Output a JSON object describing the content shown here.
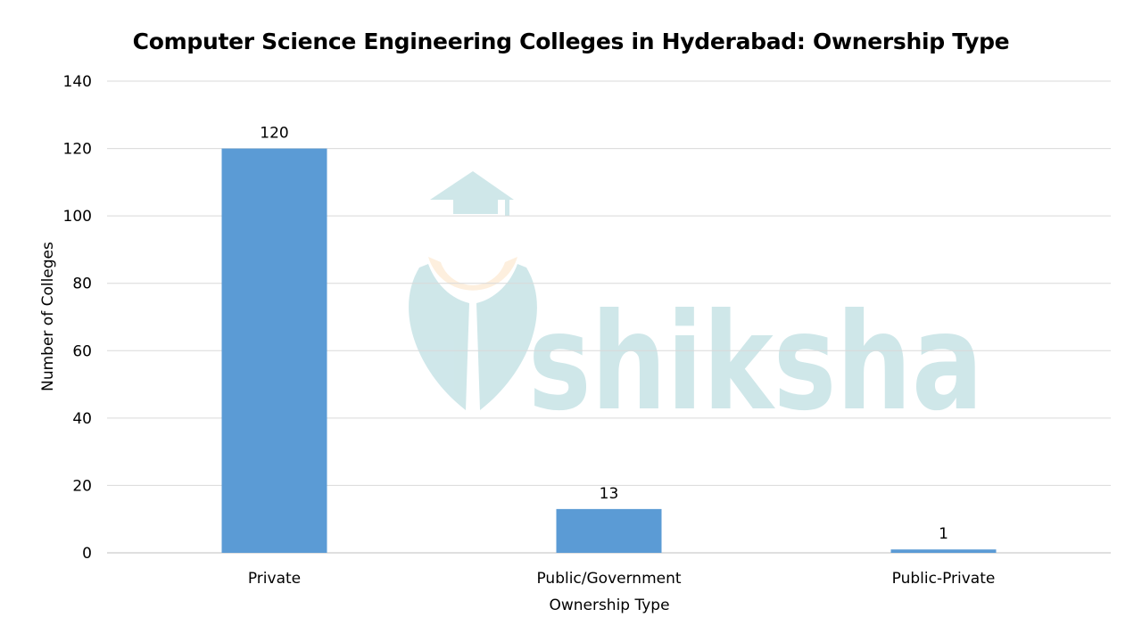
{
  "chart_data": {
    "type": "bar",
    "title": "Computer Science Engineering Colleges in Hyderabad: Ownership Type",
    "xlabel": "Ownership Type",
    "ylabel": "Number of Colleges",
    "categories": [
      "Private",
      "Public/Government",
      "Public-Private"
    ],
    "values": [
      120,
      13,
      1
    ],
    "data_labels": [
      "120",
      "13",
      "1"
    ],
    "ylim": [
      0,
      140
    ],
    "yticks": [
      0,
      20,
      40,
      60,
      80,
      100,
      120,
      140
    ],
    "grid": true,
    "bar_color": "#5b9bd5",
    "watermark_text": "shiksha"
  }
}
